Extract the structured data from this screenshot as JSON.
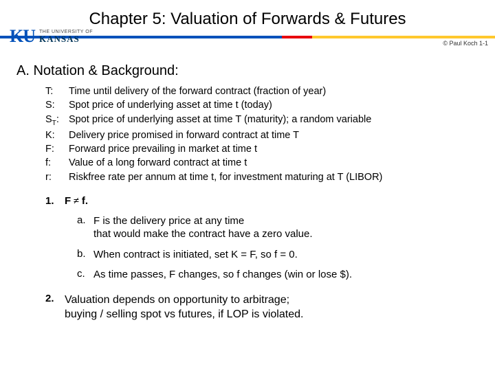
{
  "title": "Chapter 5:  Valuation of Forwards & Futures",
  "rule": {
    "blue_pct": 57,
    "red_pct": 6,
    "gold_pct": 37
  },
  "logo": {
    "mark": "KU",
    "the": "THE UNIVERSITY OF",
    "kansas": "KANSAS"
  },
  "copyright": "© Paul Koch 1-1",
  "section_head": "A.  Notation & Background:",
  "notation": [
    {
      "sym_html": "T:",
      "defn": "Time until delivery of the forward contract (fraction of year)"
    },
    {
      "sym_html": "S:",
      "defn": "Spot price of underlying asset at time t (today)"
    },
    {
      "sym_html": "S_T:",
      "defn": "Spot price of underlying asset at time T (maturity); a random variable"
    },
    {
      "sym_html": "K:",
      "defn": "Delivery price promised in forward contract at time T"
    },
    {
      "sym_html": "F:",
      "defn": "Forward price prevailing in market at time t"
    },
    {
      "sym_html": "f:",
      "defn": "Value of a long forward contract at time t"
    },
    {
      "sym_html": "r:",
      "defn": "Riskfree rate per annum at time t, for investment maturing at T  (LIBOR)"
    }
  ],
  "point1": {
    "num": "1.",
    "headline_pre": "F",
    "headline_mid": " ≠ ",
    "headline_post": " f.",
    "subs": [
      {
        "letter": "a.",
        "text": "F is the delivery price at any time\nthat would make the contract have a zero value."
      },
      {
        "letter": "b.",
        "text": "When contract is initiated, set K = F, so f = 0."
      },
      {
        "letter": "c.",
        "text": "As time passes, F changes, so f changes (win or lose $)."
      }
    ]
  },
  "point2": {
    "num": "2.",
    "text": "Valuation depends on opportunity to arbitrage;\nbuying / selling  spot  vs  futures,  if LOP is violated."
  }
}
